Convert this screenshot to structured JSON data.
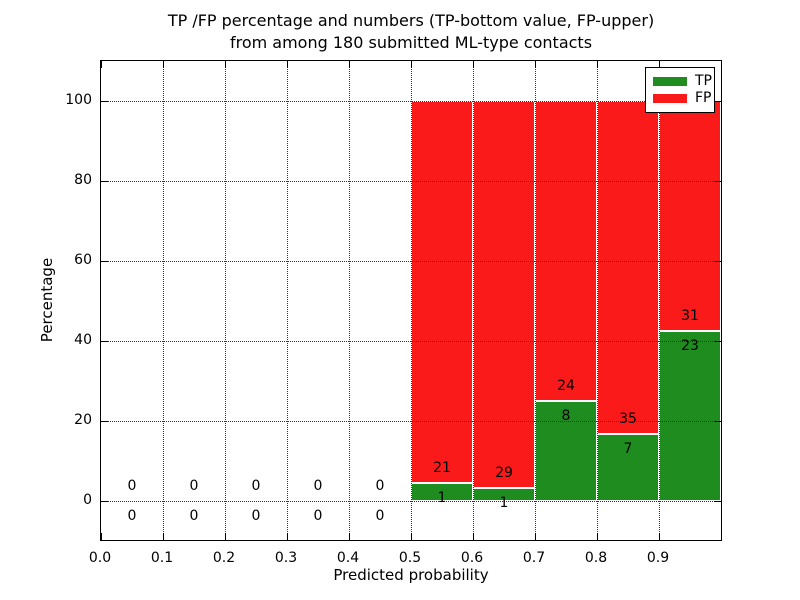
{
  "chart_data": {
    "type": "bar",
    "stacked": true,
    "title": "TP /FP percentage and numbers (TP-bottom value, FP-upper)\nfrom among 180 submitted ML-type contacts",
    "title_lines": [
      "TP /FP percentage and numbers (TP-bottom value, FP-upper)",
      "from among 180 submitted ML-type contacts"
    ],
    "xlabel": "Predicted probability",
    "ylabel": "Percentage",
    "xlim": [
      0.0,
      1.0
    ],
    "ylim": [
      -10,
      110
    ],
    "x_ticks": [
      0.0,
      0.1,
      0.2,
      0.3,
      0.4,
      0.5,
      0.6,
      0.7,
      0.8,
      0.9
    ],
    "x_tick_labels": [
      "0.0",
      "0.1",
      "0.2",
      "0.3",
      "0.4",
      "0.5",
      "0.6",
      "0.7",
      "0.8",
      "0.9"
    ],
    "y_ticks": [
      0,
      20,
      40,
      60,
      80,
      100
    ],
    "y_tick_labels": [
      "0",
      "20",
      "40",
      "60",
      "80",
      "100"
    ],
    "grid": "dotted",
    "legend_position": "upper-right",
    "total_contacts": 180,
    "series": [
      {
        "name": "TP",
        "color": "#1e8c1e"
      },
      {
        "name": "FP",
        "color": "#fa1a1a"
      }
    ],
    "bins": [
      {
        "range": [
          0.0,
          0.1
        ],
        "tp_count": 0,
        "fp_count": 0,
        "tp_pct": 0,
        "fp_pct": 0
      },
      {
        "range": [
          0.1,
          0.2
        ],
        "tp_count": 0,
        "fp_count": 0,
        "tp_pct": 0,
        "fp_pct": 0
      },
      {
        "range": [
          0.2,
          0.3
        ],
        "tp_count": 0,
        "fp_count": 0,
        "tp_pct": 0,
        "fp_pct": 0
      },
      {
        "range": [
          0.3,
          0.4
        ],
        "tp_count": 0,
        "fp_count": 0,
        "tp_pct": 0,
        "fp_pct": 0
      },
      {
        "range": [
          0.4,
          0.5
        ],
        "tp_count": 0,
        "fp_count": 0,
        "tp_pct": 0,
        "fp_pct": 0
      },
      {
        "range": [
          0.5,
          0.6
        ],
        "tp_count": 1,
        "fp_count": 21,
        "tp_pct": 4.5,
        "fp_pct": 95.5
      },
      {
        "range": [
          0.6,
          0.7
        ],
        "tp_count": 1,
        "fp_count": 29,
        "tp_pct": 3.3,
        "fp_pct": 96.7
      },
      {
        "range": [
          0.7,
          0.8
        ],
        "tp_count": 8,
        "fp_count": 24,
        "tp_pct": 25.0,
        "fp_pct": 75.0
      },
      {
        "range": [
          0.8,
          0.9
        ],
        "tp_count": 7,
        "fp_count": 35,
        "tp_pct": 16.7,
        "fp_pct": 83.3
      },
      {
        "range": [
          0.9,
          1.0
        ],
        "tp_count": 23,
        "fp_count": 31,
        "tp_pct": 42.6,
        "fp_pct": 57.4
      }
    ]
  }
}
